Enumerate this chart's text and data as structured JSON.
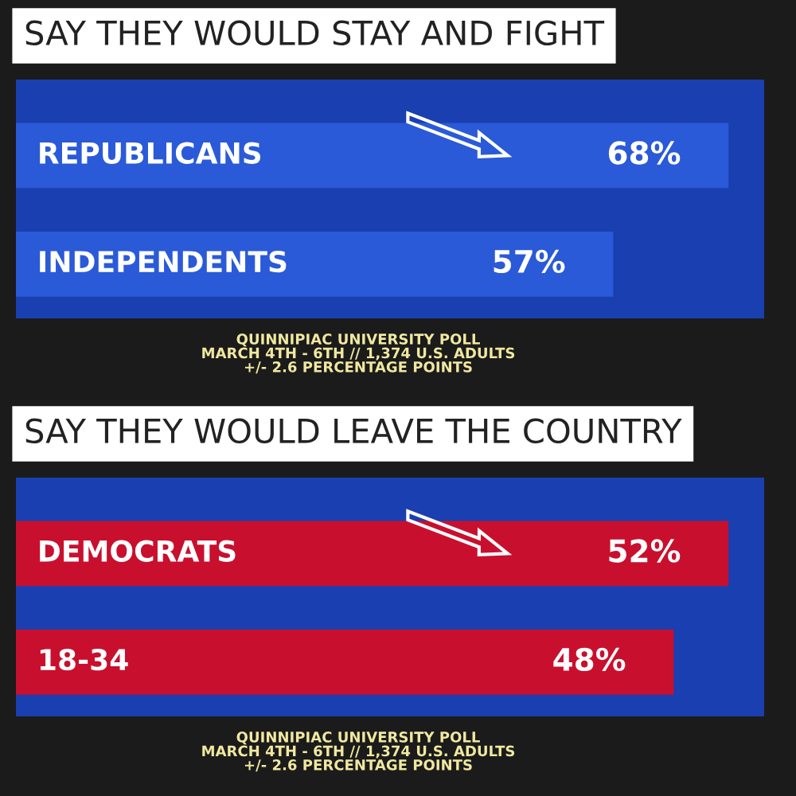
{
  "chart_data": [
    {
      "type": "bar",
      "orientation": "horizontal",
      "title": "SAY THEY WOULD STAY AND FIGHT",
      "categories": [
        "REPUBLICANS",
        "INDEPENDENTS"
      ],
      "series": [
        {
          "color": "#2a5ad8",
          "values": [
            68,
            57
          ],
          "value_labels": [
            "68%",
            "57%"
          ]
        }
      ],
      "annotations": [
        "QUINNIPIAC UNIVERSITY POLL\nMARCH 4TH - 6TH // 1,374 U.S. ADULTS\n+/- 2.6 PERCENTAGE POINTS"
      ]
    },
    {
      "type": "bar",
      "orientation": "horizontal",
      "title": "SAY THEY WOULD LEAVE THE COUNTRY",
      "categories": [
        "DEMOCRATS",
        "18-34"
      ],
      "series": [
        {
          "color": "#c8102e",
          "values": [
            52,
            48
          ],
          "value_labels": [
            "52%",
            "48%"
          ]
        }
      ],
      "annotations": [
        "QUINNIPIAC UNIVERSITY POLL\nMARCH 4TH - 6TH // 1,374 U.S. ADULTS\n+/- 2.6 PERCENTAGE POINTS"
      ]
    }
  ]
}
